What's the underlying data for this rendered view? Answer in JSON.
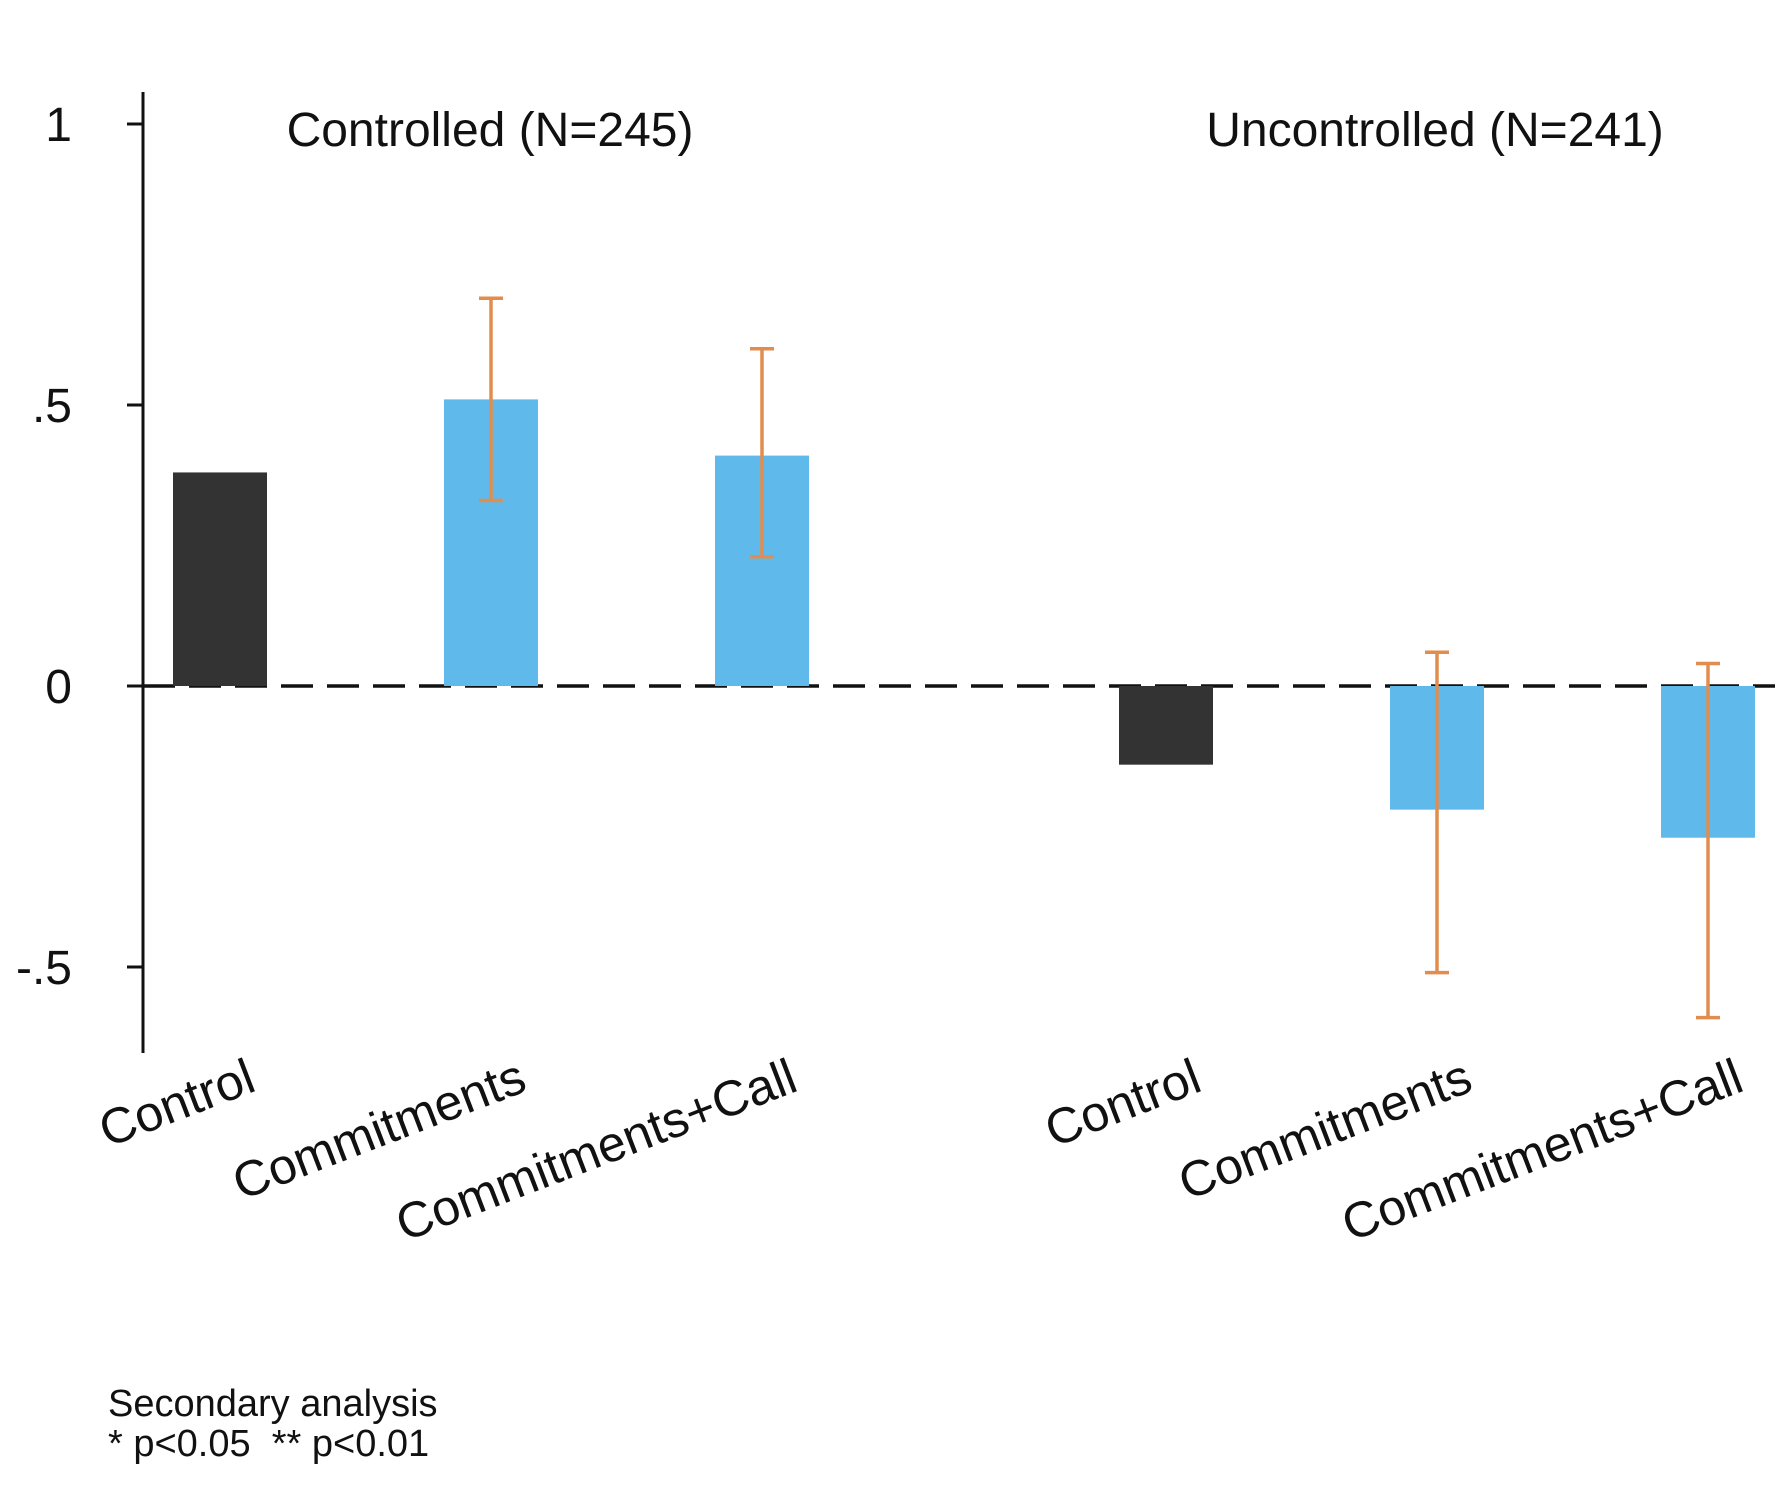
{
  "chart_data": {
    "type": "bar",
    "groups": [
      {
        "title": "Controlled (N=245)",
        "categories": [
          "Control",
          "Commitments",
          "Commitments+Call"
        ],
        "values": [
          0.38,
          0.51,
          0.41
        ],
        "error_low": [
          null,
          0.33,
          0.23
        ],
        "error_high": [
          null,
          0.69,
          0.6
        ]
      },
      {
        "title": "Uncontrolled (N=241)",
        "categories": [
          "Control",
          "Commitments",
          "Commitments+Call"
        ],
        "values": [
          -0.14,
          -0.22,
          -0.27
        ],
        "error_low": [
          null,
          -0.51,
          -0.59
        ],
        "error_high": [
          null,
          0.06,
          0.04
        ]
      }
    ],
    "yticks": [
      {
        "value": 1,
        "label": "1"
      },
      {
        "value": 0.5,
        "label": ".5"
      },
      {
        "value": 0,
        "label": "0"
      },
      {
        "value": -0.5,
        "label": "-.5"
      }
    ],
    "ylim": [
      -0.65,
      1.05
    ],
    "reference_line": 0,
    "colors": {
      "control": "#333333",
      "treatment": "#5fbaeb",
      "error_bar": "#e08d4f",
      "axis": "#111111"
    }
  },
  "footnote": {
    "line1": "Secondary analysis",
    "line2": "* p<0.05  ** p<0.01"
  }
}
